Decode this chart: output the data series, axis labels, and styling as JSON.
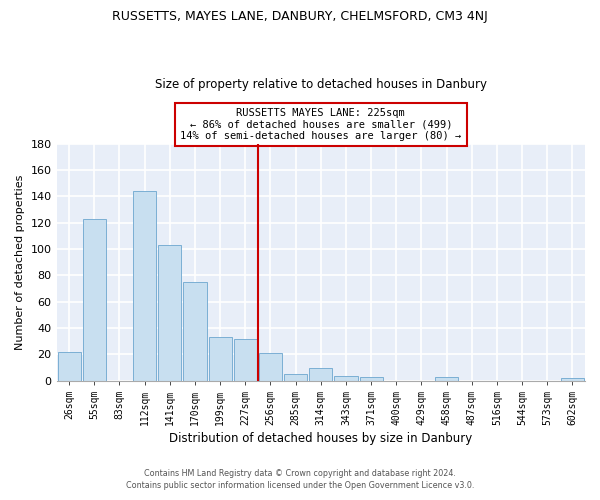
{
  "title": "RUSSETTS, MAYES LANE, DANBURY, CHELMSFORD, CM3 4NJ",
  "subtitle": "Size of property relative to detached houses in Danbury",
  "xlabel": "Distribution of detached houses by size in Danbury",
  "ylabel": "Number of detached properties",
  "bar_labels": [
    "26sqm",
    "55sqm",
    "83sqm",
    "112sqm",
    "141sqm",
    "170sqm",
    "199sqm",
    "227sqm",
    "256sqm",
    "285sqm",
    "314sqm",
    "343sqm",
    "371sqm",
    "400sqm",
    "429sqm",
    "458sqm",
    "487sqm",
    "516sqm",
    "544sqm",
    "573sqm",
    "602sqm"
  ],
  "bar_heights": [
    22,
    123,
    0,
    144,
    103,
    75,
    33,
    32,
    21,
    5,
    10,
    4,
    3,
    0,
    0,
    3,
    0,
    0,
    0,
    0,
    2
  ],
  "bar_color": "#c8dff0",
  "bar_edge_color": "#7bafd4",
  "vline_x": 7.5,
  "vline_color": "#cc0000",
  "annotation_text": "RUSSETTS MAYES LANE: 225sqm\n← 86% of detached houses are smaller (499)\n14% of semi-detached houses are larger (80) →",
  "annotation_box_color": "#ffffff",
  "annotation_box_edge": "#cc0000",
  "ylim": [
    0,
    180
  ],
  "yticks": [
    0,
    20,
    40,
    60,
    80,
    100,
    120,
    140,
    160,
    180
  ],
  "footer_line1": "Contains HM Land Registry data © Crown copyright and database right 2024.",
  "footer_line2": "Contains public sector information licensed under the Open Government Licence v3.0.",
  "plot_bg_color": "#e8eef8",
  "fig_bg_color": "#ffffff",
  "grid_color": "#ffffff"
}
